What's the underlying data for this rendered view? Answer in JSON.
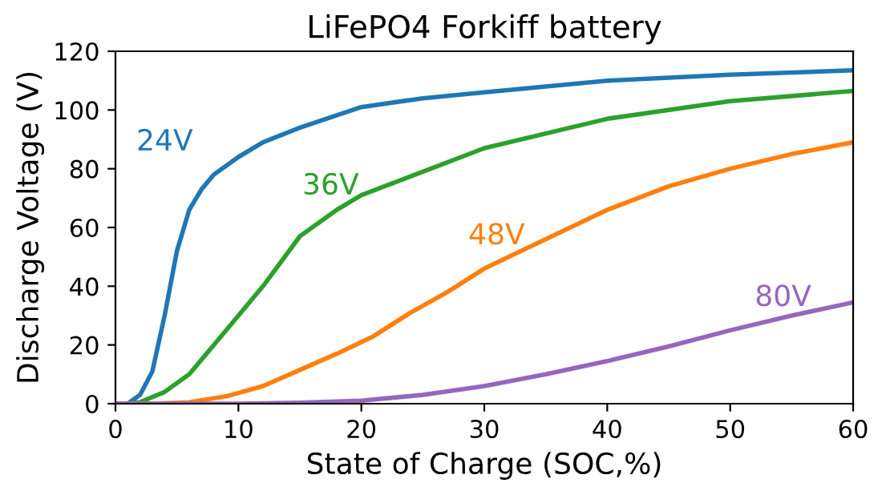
{
  "chart_data": {
    "type": "line",
    "title": "LiFePO4 Forkiff battery",
    "xlabel": "State of Charge (SOC,%)",
    "ylabel": "Discharge Voltage (V)",
    "xlim": [
      0,
      60
    ],
    "xticks": [
      0,
      10,
      20,
      30,
      40,
      50,
      60
    ],
    "ylim": [
      0,
      120
    ],
    "yticks": [
      0,
      20,
      40,
      60,
      80,
      100,
      120
    ],
    "grid": false,
    "legend": false,
    "series": [
      {
        "name": "24V",
        "color": "#1f77b4",
        "x": [
          0,
          1,
          2,
          3,
          4,
          5,
          6,
          7,
          8,
          10,
          12,
          15,
          20,
          25,
          30,
          40,
          50,
          60
        ],
        "values": [
          0,
          0,
          3,
          11,
          30,
          52,
          66,
          73,
          78,
          84,
          89,
          94,
          101,
          104,
          106,
          110,
          112,
          113.5
        ]
      },
      {
        "name": "36V",
        "color": "#2ca02c",
        "x": [
          0,
          1,
          2,
          4,
          6,
          8,
          10,
          12,
          15,
          18,
          20,
          25,
          30,
          40,
          50,
          60
        ],
        "values": [
          0,
          0,
          0.5,
          4,
          10,
          20,
          30,
          40,
          57,
          66,
          71,
          79,
          87,
          97,
          103,
          106.5
        ]
      },
      {
        "name": "48V",
        "color": "#ff7f0e",
        "x": [
          0,
          3,
          6,
          9,
          12,
          15,
          18,
          21,
          24,
          27,
          30,
          33,
          36,
          40,
          45,
          50,
          55,
          60
        ],
        "values": [
          0,
          0,
          0.5,
          2.5,
          6,
          11.5,
          17,
          23,
          31,
          38,
          46,
          52,
          58,
          66,
          74,
          80,
          85,
          89
        ]
      },
      {
        "name": "80V",
        "color": "#9467bd",
        "x": [
          0,
          10,
          15,
          20,
          25,
          30,
          35,
          40,
          45,
          50,
          55,
          60
        ],
        "values": [
          0,
          0,
          0.3,
          1,
          3,
          6,
          10,
          14.5,
          19.5,
          25,
          30,
          34.5
        ]
      }
    ]
  }
}
